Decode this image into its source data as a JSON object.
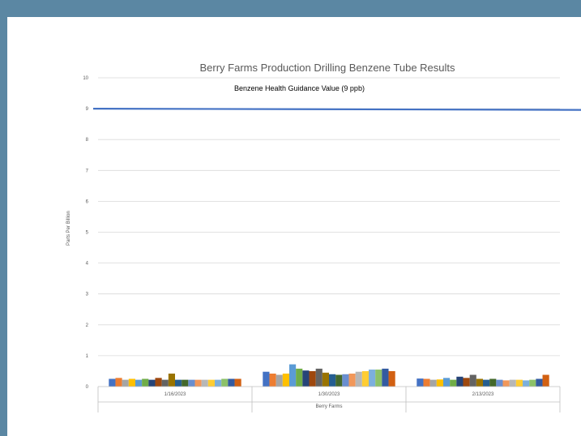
{
  "chart_data": {
    "type": "bar",
    "title": "Berry Farms Production Drilling Benzene Tube Results",
    "xlabel": "Berry Farms",
    "ylabel": "Parts Per Billion",
    "ylim": [
      0,
      10
    ],
    "yticks": [
      0,
      1,
      2,
      3,
      4,
      5,
      6,
      7,
      8,
      9,
      10
    ],
    "grid": true,
    "categories": [
      "1/16/2023",
      "1/30/2023",
      "2/13/2023"
    ],
    "series": [
      {
        "color": "#4472c4",
        "values": [
          0.25,
          0.48,
          0.26
        ]
      },
      {
        "color": "#ed7d31",
        "values": [
          0.28,
          0.42,
          0.25
        ]
      },
      {
        "color": "#a5a5a5",
        "values": [
          0.22,
          0.38,
          0.22
        ]
      },
      {
        "color": "#ffc000",
        "values": [
          0.25,
          0.42,
          0.23
        ]
      },
      {
        "color": "#5b9bd5",
        "values": [
          0.22,
          0.72,
          0.28
        ]
      },
      {
        "color": "#70ad47",
        "values": [
          0.25,
          0.58,
          0.22
        ]
      },
      {
        "color": "#264478",
        "values": [
          0.22,
          0.52,
          0.32
        ]
      },
      {
        "color": "#9e480e",
        "values": [
          0.28,
          0.5,
          0.28
        ]
      },
      {
        "color": "#636363",
        "values": [
          0.22,
          0.58,
          0.38
        ]
      },
      {
        "color": "#997300",
        "values": [
          0.42,
          0.45,
          0.25
        ]
      },
      {
        "color": "#255e91",
        "values": [
          0.22,
          0.4,
          0.22
        ]
      },
      {
        "color": "#43682b",
        "values": [
          0.22,
          0.38,
          0.25
        ]
      },
      {
        "color": "#698ed0",
        "values": [
          0.22,
          0.4,
          0.22
        ]
      },
      {
        "color": "#f1975a",
        "values": [
          0.22,
          0.42,
          0.2
        ]
      },
      {
        "color": "#b7b7b7",
        "values": [
          0.22,
          0.48,
          0.22
        ]
      },
      {
        "color": "#ffcd33",
        "values": [
          0.22,
          0.5,
          0.22
        ]
      },
      {
        "color": "#7cafdd",
        "values": [
          0.22,
          0.55,
          0.2
        ]
      },
      {
        "color": "#8cc168",
        "values": [
          0.25,
          0.55,
          0.22
        ]
      },
      {
        "color": "#335aa1",
        "values": [
          0.25,
          0.58,
          0.25
        ]
      },
      {
        "color": "#d26012",
        "values": [
          0.25,
          0.5,
          0.38
        ]
      }
    ],
    "reference_line": {
      "value": 9,
      "color": "#4472c4",
      "label": "Benzene Health Guidance Value (9 ppb)"
    }
  }
}
